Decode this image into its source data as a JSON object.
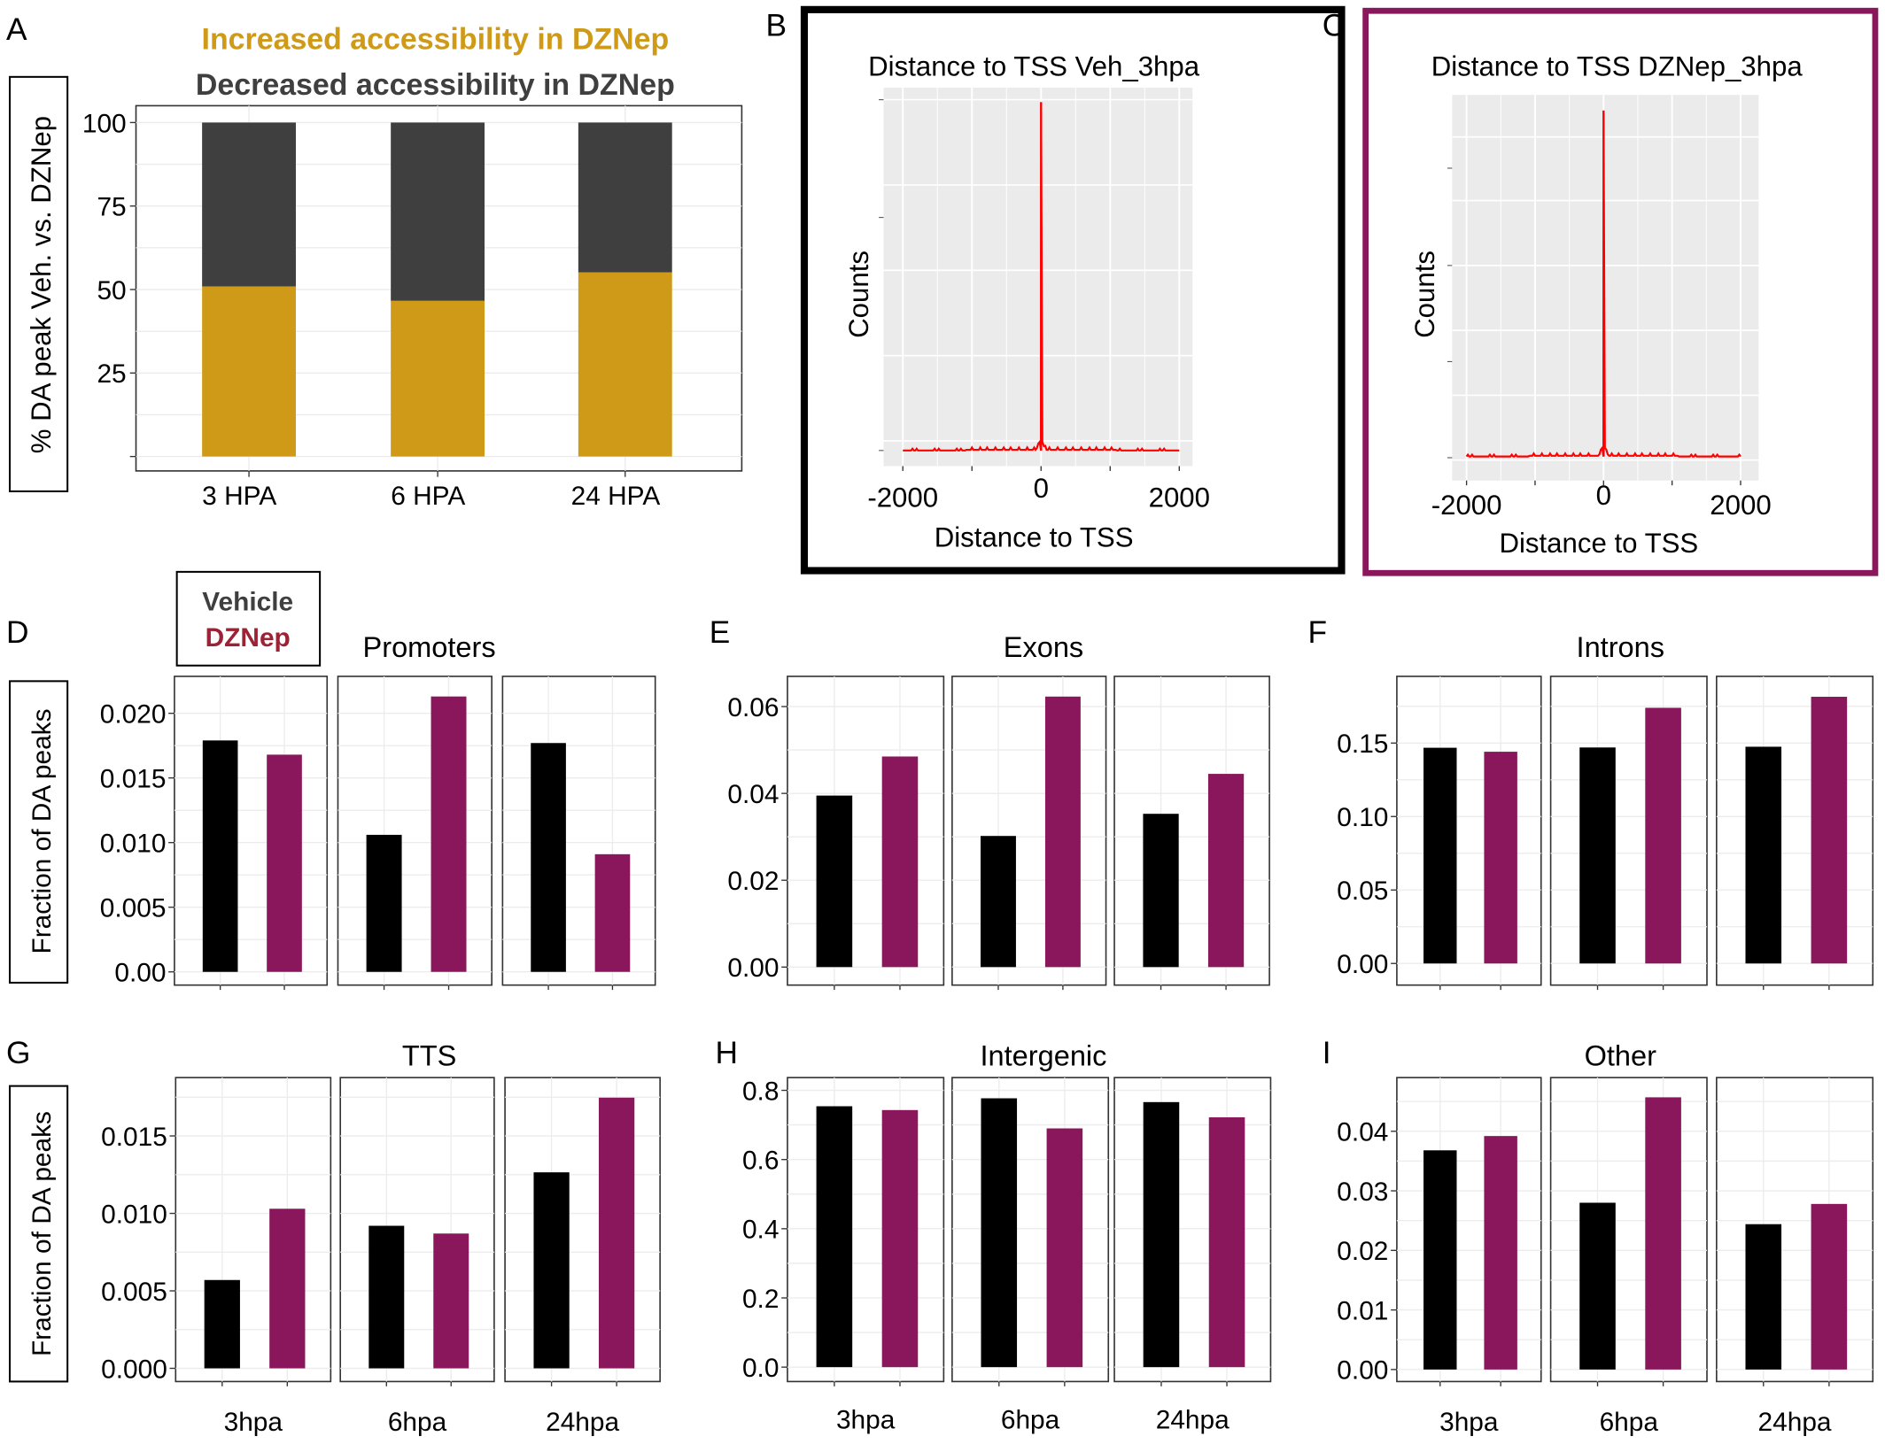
{
  "colors": {
    "increased": "#CE9A18",
    "decreased": "#3F3F3F",
    "vehicle": "#000000",
    "dznep": "#8A165B",
    "dznep_legend_text": "#9B2335",
    "curve": "#FF0000",
    "panel_c_border": "#8A165B",
    "panel_b_border": "#000000"
  },
  "panel_letters": [
    "A",
    "B",
    "C",
    "D",
    "E",
    "F",
    "G",
    "H",
    "I"
  ],
  "chart_data": [
    {
      "id": "A",
      "type": "bar",
      "stacked": true,
      "title_lines": [
        "Increased accessibility in DZNep",
        "Decreased accessibility in DZNep"
      ],
      "ylabel": "% DA peak Veh. vs. DZNep",
      "xlabel": "",
      "categories": [
        "3 HPA",
        "6 HPA",
        "24 HPA"
      ],
      "series": [
        {
          "name": "Increased accessibility in DZNep",
          "values": [
            50.9,
            46.6,
            55.1
          ]
        },
        {
          "name": "Decreased accessibility in DZNep",
          "values": [
            49.1,
            53.4,
            44.9
          ]
        }
      ],
      "yticks": [
        25,
        50,
        75,
        100
      ],
      "ylim": [
        0,
        100
      ],
      "grid": true
    },
    {
      "id": "B",
      "type": "line",
      "title": "Distance to TSS Veh_3hpa",
      "xlabel": "Distance to TSS",
      "ylabel": "Counts",
      "xticks": [
        -2000,
        0,
        2000
      ],
      "xlim": [
        -2000,
        2000
      ],
      "y_tick_labels_visible": false,
      "peak_x": 0,
      "shape": "sharp single peak at TSS, near-zero baseline elsewhere",
      "grid": true
    },
    {
      "id": "C",
      "type": "line",
      "title": "Distance to TSS DZNep_3hpa",
      "xlabel": "Distance to TSS",
      "ylabel": "Counts",
      "xticks": [
        -2000,
        0,
        2000
      ],
      "xlim": [
        -2000,
        2000
      ],
      "y_tick_labels_visible": false,
      "peak_x": 0,
      "shape": "sharp single peak at TSS, near-zero baseline elsewhere",
      "grid": true
    },
    {
      "id": "D",
      "type": "bar",
      "title": "Promoters",
      "ylabel": "Fraction of DA peaks",
      "facets": [
        "3hpa",
        "6hpa",
        "24hpa"
      ],
      "show_facet_labels": false,
      "series": [
        {
          "name": "Vehicle",
          "values": [
            0.0179,
            0.0106,
            0.0177
          ]
        },
        {
          "name": "DZNep",
          "values": [
            0.0168,
            0.0213,
            0.0091
          ]
        }
      ],
      "yticks": [
        "0.00",
        "0.005",
        "0.010",
        "0.015",
        "0.020"
      ],
      "ytick_values": [
        0,
        0.005,
        0.01,
        0.015,
        0.02
      ],
      "ylim": [
        0,
        0.0223
      ]
    },
    {
      "id": "E",
      "type": "bar",
      "title": "Exons",
      "ylabel": "",
      "facets": [
        "3hpa",
        "6hpa",
        "24hpa"
      ],
      "show_facet_labels": false,
      "series": [
        {
          "name": "Vehicle",
          "values": [
            0.0395,
            0.0302,
            0.0353
          ]
        },
        {
          "name": "DZNep",
          "values": [
            0.0485,
            0.0623,
            0.0445
          ]
        }
      ],
      "yticks": [
        "0.00",
        "0.02",
        "0.04",
        "0.06"
      ],
      "ytick_values": [
        0,
        0.02,
        0.04,
        0.06
      ],
      "ylim": [
        0,
        0.0653
      ]
    },
    {
      "id": "F",
      "type": "bar",
      "title": "Introns",
      "ylabel": "",
      "facets": [
        "3hpa",
        "6hpa",
        "24hpa"
      ],
      "show_facet_labels": false,
      "series": [
        {
          "name": "Vehicle",
          "values": [
            0.1468,
            0.147,
            0.1475
          ]
        },
        {
          "name": "DZNep",
          "values": [
            0.1441,
            0.174,
            0.1815
          ]
        }
      ],
      "yticks": [
        "0.00",
        "0.05",
        "0.10",
        "0.15"
      ],
      "ytick_values": [
        0,
        0.05,
        0.1,
        0.15
      ],
      "ylim": [
        0,
        0.1905
      ]
    },
    {
      "id": "G",
      "type": "bar",
      "title": "TTS",
      "ylabel": "Fraction of DA peaks",
      "facets": [
        "3hpa",
        "6hpa",
        "24hpa"
      ],
      "show_facet_labels": true,
      "series": [
        {
          "name": "Vehicle",
          "values": [
            0.0057,
            0.0092,
            0.01265
          ]
        },
        {
          "name": "DZNep",
          "values": [
            0.0103,
            0.0087,
            0.01747
          ]
        }
      ],
      "yticks": [
        "0.000",
        "0.005",
        "0.010",
        "0.015"
      ],
      "ytick_values": [
        0,
        0.005,
        0.01,
        0.015
      ],
      "ylim": [
        0,
        0.0183
      ]
    },
    {
      "id": "H",
      "type": "bar",
      "title": "Intergenic",
      "ylabel": "",
      "facets": [
        "3hpa",
        "6hpa",
        "24hpa"
      ],
      "show_facet_labels": true,
      "series": [
        {
          "name": "Vehicle",
          "values": [
            0.754,
            0.777,
            0.766
          ]
        },
        {
          "name": "DZNep",
          "values": [
            0.743,
            0.69,
            0.722
          ]
        }
      ],
      "yticks": [
        "0.0",
        "0.2",
        "0.4",
        "0.6",
        "0.8"
      ],
      "ytick_values": [
        0,
        0.2,
        0.4,
        0.6,
        0.8
      ],
      "ylim": [
        0,
        0.816
      ]
    },
    {
      "id": "I",
      "type": "bar",
      "title": "Other",
      "ylabel": "",
      "facets": [
        "3hpa",
        "6hpa",
        "24hpa"
      ],
      "show_facet_labels": true,
      "series": [
        {
          "name": "Vehicle",
          "values": [
            0.0368,
            0.028,
            0.0244
          ]
        },
        {
          "name": "DZNep",
          "values": [
            0.0392,
            0.0457,
            0.0278
          ]
        }
      ],
      "yticks": [
        "0.00",
        "0.01",
        "0.02",
        "0.03",
        "0.04"
      ],
      "ytick_values": [
        0,
        0.01,
        0.02,
        0.03,
        0.04
      ],
      "ylim": [
        0,
        0.0478
      ]
    }
  ],
  "legend": {
    "items": [
      "Vehicle",
      "DZNep"
    ]
  }
}
